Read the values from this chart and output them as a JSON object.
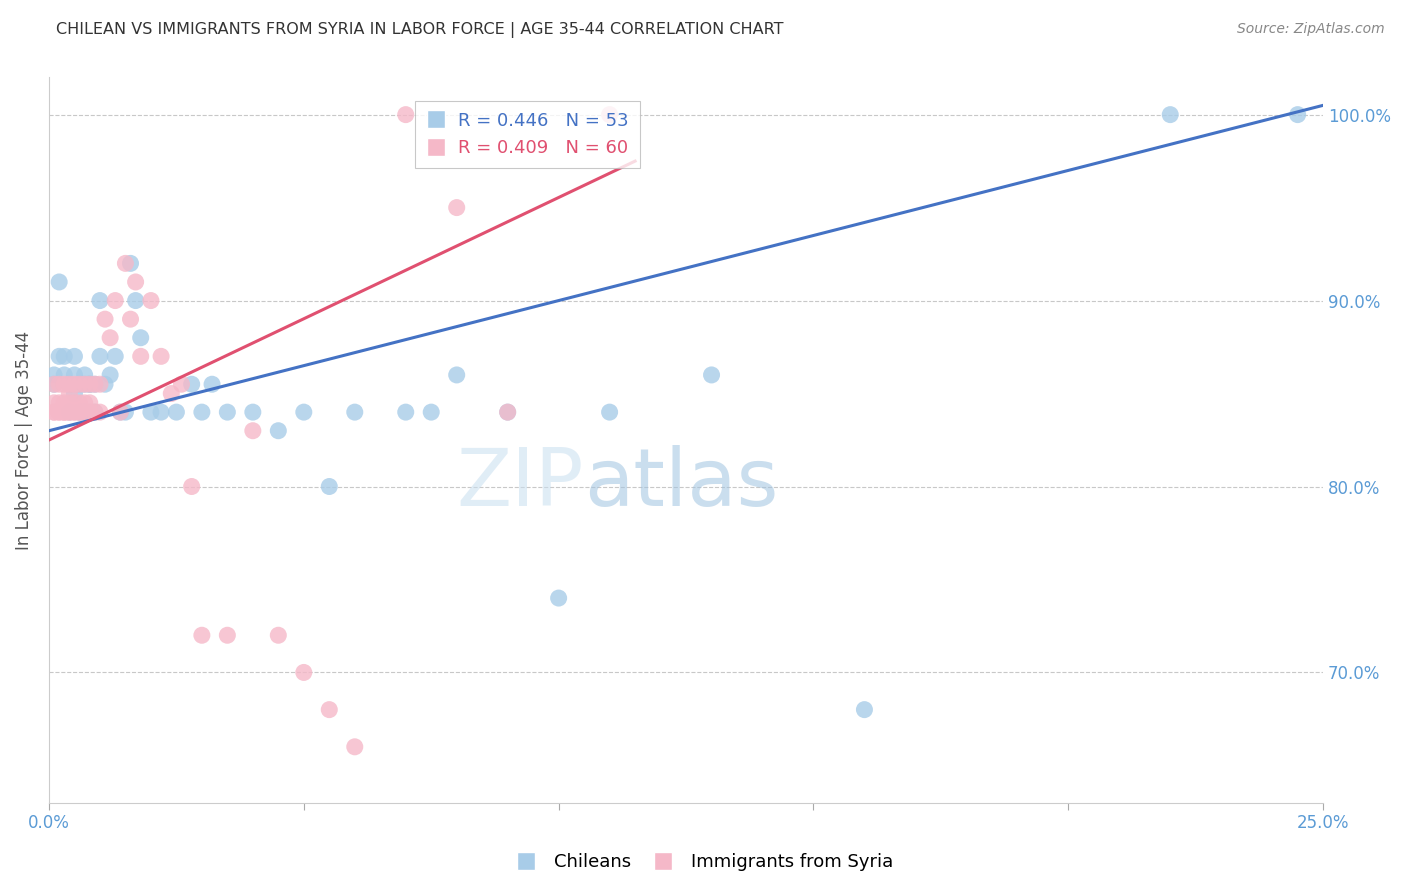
{
  "title": "CHILEAN VS IMMIGRANTS FROM SYRIA IN LABOR FORCE | AGE 35-44 CORRELATION CHART",
  "source": "Source: ZipAtlas.com",
  "ylabel": "In Labor Force | Age 35-44",
  "xlim": [
    0.0,
    0.25
  ],
  "ylim": [
    0.63,
    1.02
  ],
  "yticks": [
    0.7,
    0.8,
    0.9,
    1.0
  ],
  "ytick_labels": [
    "70.0%",
    "80.0%",
    "90.0%",
    "100.0%"
  ],
  "xtick_positions": [
    0.0,
    0.25
  ],
  "xtick_labels": [
    "0.0%",
    "25.0%"
  ],
  "blue_color": "#a8cce8",
  "pink_color": "#f5b8c8",
  "blue_line_color": "#4472c4",
  "pink_line_color": "#e05070",
  "legend_blue_r": "R = 0.446",
  "legend_blue_n": "N = 53",
  "legend_pink_r": "R = 0.409",
  "legend_pink_n": "N = 60",
  "watermark_zip": "ZIP",
  "watermark_atlas": "atlas",
  "axis_color": "#5b9bd5",
  "grid_color": "#c8c8c8",
  "title_color": "#333333",
  "blue_regression_x0": 0.0,
  "blue_regression_y0": 0.83,
  "blue_regression_x1": 0.25,
  "blue_regression_y1": 1.005,
  "pink_regression_x0": 0.0,
  "pink_regression_y0": 0.825,
  "pink_regression_x1": 0.115,
  "pink_regression_y1": 0.975,
  "chileans_x": [
    0.001,
    0.001,
    0.002,
    0.002,
    0.003,
    0.003,
    0.004,
    0.004,
    0.005,
    0.005,
    0.005,
    0.006,
    0.006,
    0.007,
    0.007,
    0.007,
    0.008,
    0.008,
    0.008,
    0.009,
    0.009,
    0.01,
    0.01,
    0.011,
    0.012,
    0.013,
    0.014,
    0.015,
    0.016,
    0.017,
    0.018,
    0.02,
    0.022,
    0.025,
    0.028,
    0.03,
    0.032,
    0.035,
    0.04,
    0.045,
    0.05,
    0.055,
    0.06,
    0.07,
    0.075,
    0.08,
    0.09,
    0.1,
    0.11,
    0.13,
    0.16,
    0.22,
    0.245
  ],
  "chileans_y": [
    0.855,
    0.86,
    0.87,
    0.91,
    0.86,
    0.87,
    0.855,
    0.84,
    0.86,
    0.85,
    0.87,
    0.84,
    0.855,
    0.86,
    0.855,
    0.84,
    0.855,
    0.84,
    0.855,
    0.84,
    0.855,
    0.87,
    0.9,
    0.855,
    0.86,
    0.87,
    0.84,
    0.84,
    0.92,
    0.9,
    0.88,
    0.84,
    0.84,
    0.84,
    0.855,
    0.84,
    0.855,
    0.84,
    0.84,
    0.83,
    0.84,
    0.8,
    0.84,
    0.84,
    0.84,
    0.86,
    0.84,
    0.74,
    0.84,
    0.86,
    0.68,
    1.0,
    1.0
  ],
  "syria_x": [
    0.001,
    0.001,
    0.001,
    0.001,
    0.002,
    0.002,
    0.002,
    0.002,
    0.003,
    0.003,
    0.003,
    0.003,
    0.003,
    0.004,
    0.004,
    0.004,
    0.004,
    0.004,
    0.005,
    0.005,
    0.005,
    0.005,
    0.006,
    0.006,
    0.006,
    0.006,
    0.007,
    0.007,
    0.007,
    0.008,
    0.008,
    0.008,
    0.009,
    0.009,
    0.01,
    0.01,
    0.011,
    0.012,
    0.013,
    0.014,
    0.015,
    0.016,
    0.017,
    0.018,
    0.02,
    0.022,
    0.024,
    0.026,
    0.028,
    0.03,
    0.035,
    0.04,
    0.045,
    0.05,
    0.055,
    0.06,
    0.07,
    0.08,
    0.09,
    0.11
  ],
  "syria_y": [
    0.84,
    0.84,
    0.845,
    0.855,
    0.84,
    0.84,
    0.845,
    0.855,
    0.84,
    0.84,
    0.84,
    0.845,
    0.855,
    0.84,
    0.84,
    0.845,
    0.85,
    0.855,
    0.84,
    0.84,
    0.845,
    0.855,
    0.84,
    0.84,
    0.845,
    0.855,
    0.84,
    0.845,
    0.855,
    0.84,
    0.845,
    0.855,
    0.84,
    0.855,
    0.855,
    0.84,
    0.89,
    0.88,
    0.9,
    0.84,
    0.92,
    0.89,
    0.91,
    0.87,
    0.9,
    0.87,
    0.85,
    0.855,
    0.8,
    0.72,
    0.72,
    0.83,
    0.72,
    0.7,
    0.68,
    0.66,
    1.0,
    0.95,
    0.84,
    1.0
  ]
}
